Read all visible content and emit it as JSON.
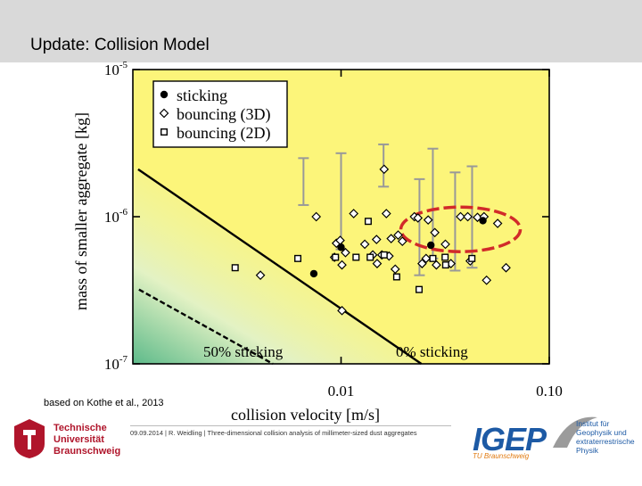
{
  "slide": {
    "title": "Update: Collision Model",
    "caption": "based on Kothe et al., 2013",
    "footer": "09.09.2014 | R. Weidling | Three-dimensional collision analysis of millimeter-sized dust aggregates"
  },
  "logos": {
    "tu_line1": "Technische",
    "tu_line2": "Universität",
    "tu_line3": "Braunschweig",
    "igep": "IGEP",
    "igep_sub": "TU Braunschweig",
    "inst_line1": "Institut für",
    "inst_line2": "Geophysik und",
    "inst_line3": "extraterrestrische",
    "inst_line4": "Physik"
  },
  "colors": {
    "plot_bg": "#fcf57a",
    "stick_region": "#e3f2c4",
    "stick_region_deep": "#5dba8a",
    "highlight_ellipse": "#d12a2a",
    "error_bar": "#999999"
  },
  "chart_data": {
    "type": "scatter",
    "xlabel": "collision velocity [m/s]",
    "ylabel": "mass of smaller aggregate [kg]",
    "xscale": "log",
    "yscale": "log",
    "xlim": [
      0.001,
      0.1
    ],
    "ylim": [
      1e-07,
      1e-05
    ],
    "xticks": [
      {
        "value": 0.01,
        "label": "0.01"
      },
      {
        "value": 0.1,
        "label": "0.10"
      }
    ],
    "yticks": [
      {
        "value": 1e-07,
        "base": "10",
        "exp": "-7"
      },
      {
        "value": 1e-06,
        "base": "10",
        "exp": "-6"
      },
      {
        "value": 1e-05,
        "base": "10",
        "exp": "-5"
      }
    ],
    "legend": {
      "position": "top-left",
      "entries": [
        {
          "marker": "circle",
          "label": "sticking"
        },
        {
          "marker": "diamond",
          "label": "bouncing (3D)"
        },
        {
          "marker": "square",
          "label": "bouncing (2D)"
        }
      ]
    },
    "threshold_lines": [
      {
        "label": "50% sticking",
        "style": "dashed",
        "points": [
          [
            0.00107,
            3.2e-07
          ],
          [
            0.0047,
            1e-07
          ]
        ]
      },
      {
        "label": "0% sticking",
        "style": "solid",
        "points": [
          [
            0.00106,
            2.1e-06
          ],
          [
            0.0243,
            1e-07
          ]
        ]
      }
    ],
    "series": [
      {
        "name": "sticking",
        "marker": "circle",
        "points": [
          [
            0.0074,
            4.1e-07
          ],
          [
            0.01,
            6.2e-07
          ],
          [
            0.027,
            6.4e-07
          ],
          [
            0.048,
            9.4e-07
          ]
        ]
      },
      {
        "name": "bouncing (3D)",
        "marker": "diamond",
        "points": [
          [
            0.0041,
            4e-07
          ],
          [
            0.0076,
            1e-06
          ],
          [
            0.0093,
            5.3e-07
          ],
          [
            0.0095,
            6.6e-07
          ],
          [
            0.0099,
            6.9e-07
          ],
          [
            0.0101,
            4.7e-07
          ],
          [
            0.0101,
            2.3e-07
          ],
          [
            0.0105,
            5.7e-07
          ],
          [
            0.0115,
            1.05e-06
          ],
          [
            0.013,
            6.5e-07
          ],
          [
            0.0142,
            5.5e-07
          ],
          [
            0.0148,
            7e-07
          ],
          [
            0.0149,
            4.8e-07
          ],
          [
            0.0157,
            5.5e-07
          ],
          [
            0.0161,
            2.1e-06
          ],
          [
            0.0165,
            1.05e-06
          ],
          [
            0.017,
            5.4e-07
          ],
          [
            0.0174,
            7.1e-07
          ],
          [
            0.0182,
            4.4e-07
          ],
          [
            0.0188,
            7.5e-07
          ],
          [
            0.0197,
            6.8e-07
          ],
          [
            0.0225,
            1e-06
          ],
          [
            0.0234,
            9.8e-07
          ],
          [
            0.0245,
            4.8e-07
          ],
          [
            0.0256,
            5.2e-07
          ],
          [
            0.0262,
            9.5e-07
          ],
          [
            0.0282,
            7.8e-07
          ],
          [
            0.0287,
            4.7e-07
          ],
          [
            0.0317,
            6.5e-07
          ],
          [
            0.0337,
            4.8e-07
          ],
          [
            0.0375,
            1e-06
          ],
          [
            0.0406,
            1e-06
          ],
          [
            0.0417,
            5e-07
          ],
          [
            0.0452,
            9.9e-07
          ],
          [
            0.0486,
            1e-06
          ],
          [
            0.05,
            3.7e-07
          ],
          [
            0.0565,
            9e-07
          ],
          [
            0.062,
            4.5e-07
          ]
        ]
      },
      {
        "name": "bouncing (2D)",
        "marker": "square",
        "points": [
          [
            0.0031,
            4.5e-07
          ],
          [
            0.0062,
            5.2e-07
          ],
          [
            0.0094,
            5.3e-07
          ],
          [
            0.0118,
            5.3e-07
          ],
          [
            0.0135,
            9.3e-07
          ],
          [
            0.0138,
            5.3e-07
          ],
          [
            0.0161,
            5.5e-07
          ],
          [
            0.0185,
            3.9e-07
          ],
          [
            0.0237,
            3.2e-07
          ],
          [
            0.0276,
            5.2e-07
          ],
          [
            0.0316,
            5.3e-07
          ],
          [
            0.0318,
            4.7e-07
          ],
          [
            0.0425,
            5.2e-07
          ]
        ]
      }
    ],
    "error_bars": [
      {
        "x": 0.0066,
        "ylow": 1.2e-06,
        "yhigh": 2.5e-06
      },
      {
        "x": 0.01,
        "ylow": 6e-07,
        "yhigh": 2.7e-06
      },
      {
        "x": 0.016,
        "ylow": 1.6e-06,
        "yhigh": 3.1e-06
      },
      {
        "x": 0.0238,
        "ylow": 4e-07,
        "yhigh": 1.8e-06
      },
      {
        "x": 0.0276,
        "ylow": 5.2e-07,
        "yhigh": 2.9e-06
      },
      {
        "x": 0.0353,
        "ylow": 4.3e-07,
        "yhigh": 2e-06
      },
      {
        "x": 0.0426,
        "ylow": 4.5e-07,
        "yhigh": 2.2e-06
      }
    ],
    "annotations": [
      {
        "type": "ellipse",
        "label": "",
        "center": [
          0.0375,
          8.2e-07
        ]
      }
    ]
  }
}
